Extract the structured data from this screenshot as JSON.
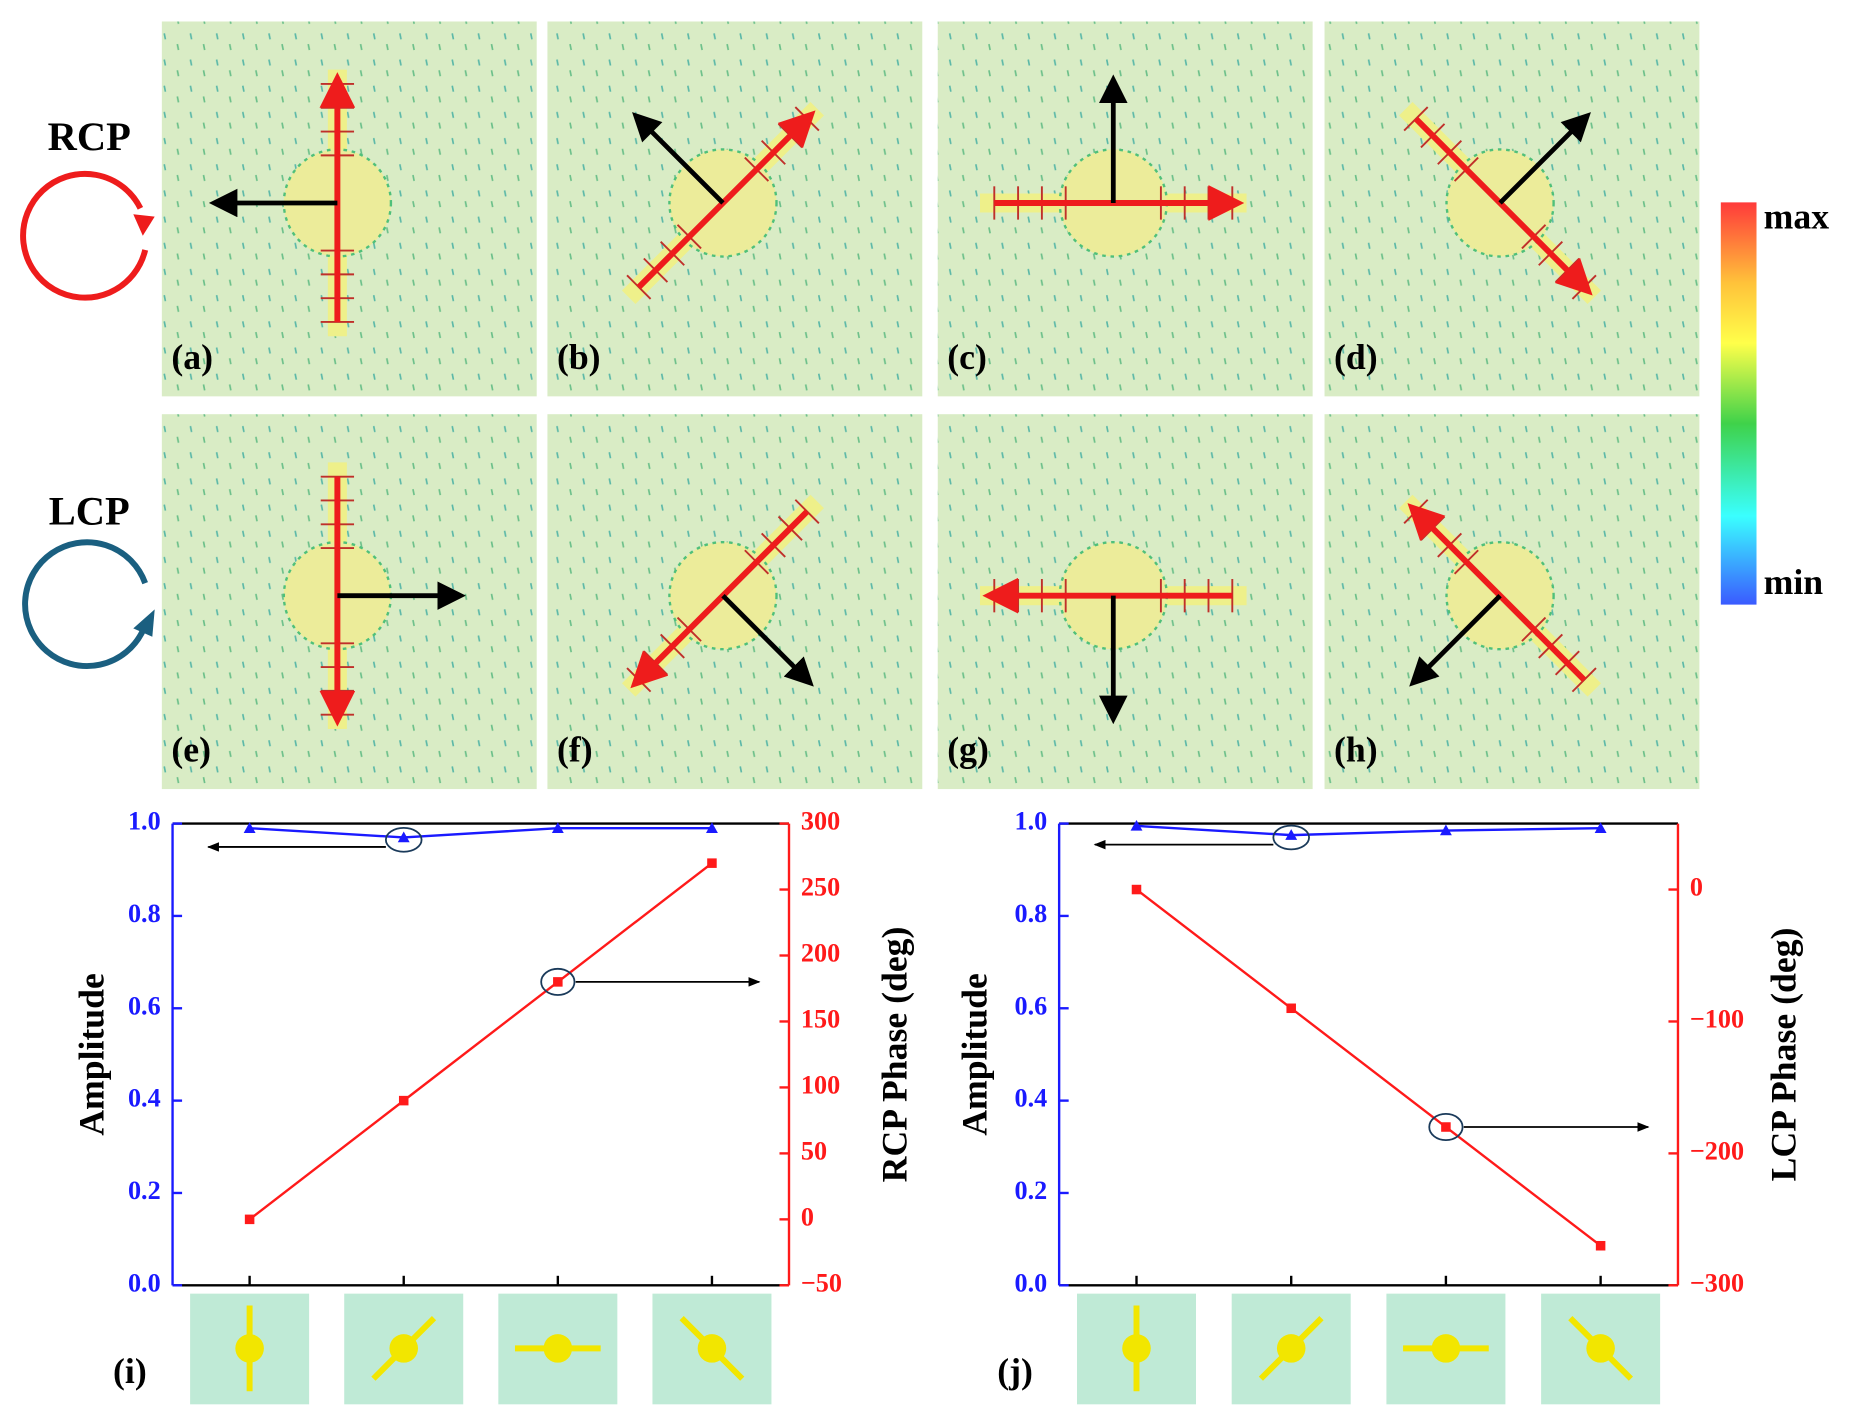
{
  "polarization_labels": [
    "RCP",
    "LCP"
  ],
  "panel_labels": [
    "(a)",
    "(b)",
    "(c)",
    "(d)",
    "(e)",
    "(f)",
    "(g)",
    "(h)"
  ],
  "colorbar": {
    "max_label": "max",
    "min_label": "min"
  },
  "chart_data": [
    {
      "type": "line",
      "panel_label": "(i)",
      "categories": [
        null,
        null,
        null,
        null
      ],
      "ylabel": "Amplitude",
      "y2label": "RCP Phase (deg)",
      "ylim": [
        0,
        1
      ],
      "yticks": [
        {
          "value": 0,
          "label": "0.0"
        },
        0.2,
        0.4,
        0.6,
        0.8,
        {
          "value": 1,
          "label": "1.0"
        }
      ],
      "y2lim": [
        -50,
        300
      ],
      "y2ticks": [
        {
          "value": -50,
          "label": "−50"
        },
        0,
        50,
        100,
        150,
        200,
        250,
        300
      ],
      "series": [
        {
          "color": "#1a1aff",
          "marker": "triangle",
          "values": [
            0.99,
            0.97,
            0.99,
            0.99
          ]
        },
        {
          "color": "#ff1a1a",
          "marker": "square",
          "axis": "y2",
          "values": [
            0,
            90,
            180,
            270
          ]
        }
      ]
    },
    {
      "type": "line",
      "panel_label": "(j)",
      "categories": [
        null,
        null,
        null,
        null
      ],
      "ylabel": "Amplitude",
      "y2label": "LCP Phase (deg)",
      "ylim": [
        0,
        1
      ],
      "yticks": [
        {
          "value": 0,
          "label": "0.0"
        },
        0.2,
        0.4,
        0.6,
        0.8,
        {
          "value": 1,
          "label": "1.0"
        }
      ],
      "y2lim": [
        -300,
        50
      ],
      "y2ticks": [
        {
          "value": -300,
          "label": "−300"
        },
        {
          "value": -200,
          "label": "−200"
        },
        {
          "value": -100,
          "label": "−100"
        },
        0
      ],
      "series": [
        {
          "color": "#1a1aff",
          "marker": "triangle",
          "values": [
            0.995,
            0.975,
            0.985,
            0.99
          ]
        },
        {
          "color": "#ff1a1a",
          "marker": "square",
          "axis": "y2",
          "values": [
            0,
            -90,
            -180,
            -270
          ]
        }
      ]
    }
  ]
}
